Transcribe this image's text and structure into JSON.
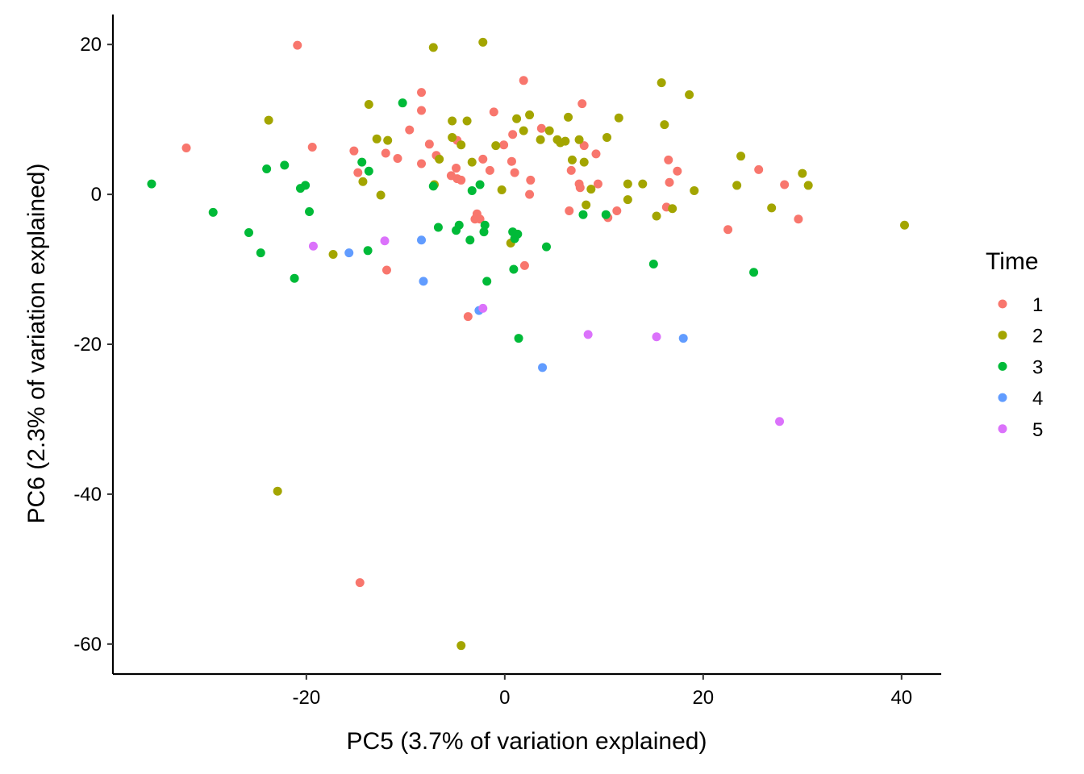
{
  "chart_data": {
    "type": "scatter",
    "xlabel": "PC5 (3.7% of variation explained)",
    "ylabel": "PC6 (2.3% of variation explained)",
    "xlim": [
      -39.5,
      44
    ],
    "ylim": [
      -64,
      24
    ],
    "xticks": [
      -20,
      0,
      20,
      40
    ],
    "yticks": [
      20,
      0,
      -20,
      -40,
      -60
    ],
    "grid": false,
    "legend": {
      "title": "Time",
      "placement": "right"
    },
    "series": [
      {
        "name": "1",
        "color": "#F8766D",
        "points": [
          [
            -20.9,
            19.9
          ],
          [
            -32.1,
            6.2
          ],
          [
            -19.4,
            6.3
          ],
          [
            -15.2,
            5.8
          ],
          [
            -14.8,
            2.9
          ],
          [
            -12.0,
            5.5
          ],
          [
            -10.8,
            4.8
          ],
          [
            -9.6,
            8.6
          ],
          [
            -8.4,
            13.6
          ],
          [
            -8.4,
            11.2
          ],
          [
            -8.4,
            4.1
          ],
          [
            -7.6,
            6.7
          ],
          [
            -6.9,
            5.2
          ],
          [
            -5.4,
            2.5
          ],
          [
            -4.9,
            3.5
          ],
          [
            -4.8,
            7.2
          ],
          [
            -4.8,
            2.1
          ],
          [
            -4.4,
            1.9
          ],
          [
            -3.0,
            -3.3
          ],
          [
            -2.8,
            -2.6
          ],
          [
            -2.5,
            -3.3
          ],
          [
            -2.2,
            4.7
          ],
          [
            -1.5,
            3.2
          ],
          [
            -1.1,
            11.0
          ],
          [
            -0.1,
            6.6
          ],
          [
            0.7,
            4.4
          ],
          [
            0.8,
            8.0
          ],
          [
            1.0,
            2.9
          ],
          [
            1.9,
            15.2
          ],
          [
            2.6,
            1.9
          ],
          [
            2.5,
            0.0
          ],
          [
            3.7,
            8.8
          ],
          [
            6.5,
            -2.2
          ],
          [
            6.7,
            3.2
          ],
          [
            7.5,
            1.4
          ],
          [
            7.6,
            0.9
          ],
          [
            7.8,
            12.1
          ],
          [
            8.0,
            6.5
          ],
          [
            9.2,
            5.4
          ],
          [
            9.4,
            1.4
          ],
          [
            10.4,
            -3.1
          ],
          [
            11.3,
            -2.2
          ],
          [
            16.3,
            -1.7
          ],
          [
            16.5,
            4.6
          ],
          [
            16.6,
            1.6
          ],
          [
            17.4,
            3.1
          ],
          [
            22.5,
            -4.7
          ],
          [
            25.6,
            3.3
          ],
          [
            28.2,
            1.3
          ],
          [
            29.6,
            -3.3
          ],
          [
            -11.9,
            -10.1
          ],
          [
            -3.7,
            -16.3
          ],
          [
            2.0,
            -9.5
          ],
          [
            -14.6,
            -51.8
          ]
        ]
      },
      {
        "name": "2",
        "color": "#A3A500",
        "points": [
          [
            -7.2,
            19.6
          ],
          [
            -2.2,
            20.3
          ],
          [
            -23.8,
            9.9
          ],
          [
            -13.7,
            12.0
          ],
          [
            -12.9,
            7.4
          ],
          [
            -11.8,
            7.2
          ],
          [
            -14.3,
            1.7
          ],
          [
            -12.5,
            -0.1
          ],
          [
            -17.3,
            -8.0
          ],
          [
            -7.1,
            1.3
          ],
          [
            -6.6,
            4.7
          ],
          [
            -5.3,
            9.8
          ],
          [
            -5.3,
            7.6
          ],
          [
            -4.4,
            6.6
          ],
          [
            -3.8,
            9.8
          ],
          [
            -3.3,
            4.3
          ],
          [
            -0.9,
            6.5
          ],
          [
            0.6,
            -6.5
          ],
          [
            1.2,
            10.1
          ],
          [
            1.9,
            8.5
          ],
          [
            2.5,
            10.6
          ],
          [
            3.6,
            7.3
          ],
          [
            4.5,
            8.5
          ],
          [
            5.3,
            7.3
          ],
          [
            5.6,
            6.9
          ],
          [
            6.1,
            7.1
          ],
          [
            6.4,
            10.3
          ],
          [
            6.8,
            4.6
          ],
          [
            7.5,
            7.3
          ],
          [
            8.0,
            4.3
          ],
          [
            8.2,
            -1.4
          ],
          [
            8.7,
            0.7
          ],
          [
            10.3,
            7.6
          ],
          [
            11.5,
            10.2
          ],
          [
            12.4,
            1.4
          ],
          [
            12.4,
            -0.7
          ],
          [
            13.9,
            1.4
          ],
          [
            15.3,
            -2.9
          ],
          [
            15.8,
            14.9
          ],
          [
            16.1,
            9.3
          ],
          [
            16.9,
            -1.9
          ],
          [
            18.6,
            13.3
          ],
          [
            19.1,
            0.5
          ],
          [
            23.4,
            1.2
          ],
          [
            23.8,
            5.1
          ],
          [
            26.9,
            -1.8
          ],
          [
            30.0,
            2.8
          ],
          [
            30.6,
            1.2
          ],
          [
            40.3,
            -4.1
          ],
          [
            -0.3,
            0.6
          ],
          [
            -22.9,
            -39.6
          ],
          [
            -4.4,
            -60.2
          ]
        ]
      },
      {
        "name": "3",
        "color": "#00BA38",
        "points": [
          [
            -35.6,
            1.4
          ],
          [
            -29.4,
            -2.4
          ],
          [
            -24.0,
            3.4
          ],
          [
            -22.2,
            3.9
          ],
          [
            -20.6,
            0.8
          ],
          [
            -20.1,
            1.2
          ],
          [
            -19.7,
            -2.3
          ],
          [
            -25.8,
            -5.1
          ],
          [
            -24.6,
            -7.8
          ],
          [
            -21.2,
            -11.2
          ],
          [
            -14.4,
            4.3
          ],
          [
            -13.7,
            3.1
          ],
          [
            -13.8,
            -7.5
          ],
          [
            -10.3,
            12.2
          ],
          [
            -7.2,
            1.1
          ],
          [
            -6.7,
            -4.4
          ],
          [
            -4.9,
            -4.8
          ],
          [
            -4.6,
            -4.1
          ],
          [
            -3.5,
            -6.1
          ],
          [
            -3.3,
            0.5
          ],
          [
            -2.5,
            1.3
          ],
          [
            -2.1,
            -5.0
          ],
          [
            -2.0,
            -4.1
          ],
          [
            -1.8,
            -11.6
          ],
          [
            0.8,
            -5.0
          ],
          [
            1.0,
            -5.9
          ],
          [
            1.3,
            -5.3
          ],
          [
            0.9,
            -10.0
          ],
          [
            4.2,
            -7.0
          ],
          [
            7.9,
            -2.7
          ],
          [
            10.2,
            -2.7
          ],
          [
            15.0,
            -9.3
          ],
          [
            25.1,
            -10.4
          ],
          [
            1.4,
            -19.2
          ]
        ]
      },
      {
        "name": "4",
        "color": "#619CFF",
        "points": [
          [
            -15.7,
            -7.8
          ],
          [
            -8.4,
            -6.1
          ],
          [
            -8.2,
            -11.6
          ],
          [
            -2.6,
            -15.5
          ],
          [
            3.8,
            -23.1
          ],
          [
            18.0,
            -19.2
          ]
        ]
      },
      {
        "name": "5",
        "color": "#DB72FB",
        "points": [
          [
            -19.3,
            -6.9
          ],
          [
            -12.1,
            -6.2
          ],
          [
            -2.2,
            -15.2
          ],
          [
            8.4,
            -18.7
          ],
          [
            15.3,
            -19.0
          ],
          [
            27.7,
            -30.3
          ]
        ]
      }
    ]
  }
}
